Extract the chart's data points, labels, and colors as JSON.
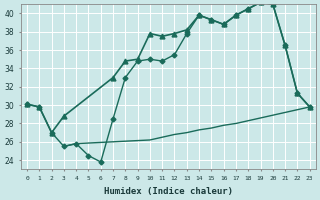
{
  "xlabel": "Humidex (Indice chaleur)",
  "bg_color": "#cce8e8",
  "grid_color": "#ffffff",
  "line_color": "#1a6b5a",
  "xlim": [
    -0.5,
    23.5
  ],
  "ylim": [
    23,
    41
  ],
  "yticks": [
    24,
    26,
    28,
    30,
    32,
    34,
    36,
    38,
    40
  ],
  "xticks": [
    0,
    1,
    2,
    3,
    4,
    5,
    6,
    7,
    8,
    9,
    10,
    11,
    12,
    13,
    14,
    15,
    16,
    17,
    18,
    19,
    20,
    21,
    22,
    23
  ],
  "series": [
    {
      "x": [
        0,
        1,
        2,
        3,
        7,
        8,
        9,
        10,
        11,
        12,
        13,
        14,
        15,
        16,
        17,
        18,
        19,
        20,
        21,
        22,
        23
      ],
      "y": [
        30.1,
        29.8,
        27.0,
        28.8,
        33.0,
        34.8,
        35.0,
        37.8,
        37.5,
        37.8,
        38.2,
        39.8,
        39.3,
        38.8,
        39.8,
        40.5,
        41.2,
        41.0,
        36.5,
        31.3,
        29.8
      ],
      "marker": "^",
      "markersize": 3.5,
      "linewidth": 1.2
    },
    {
      "x": [
        0,
        1,
        2,
        3,
        4,
        5,
        6,
        7,
        8,
        9,
        10,
        11,
        12,
        13,
        14,
        15,
        16,
        17,
        18,
        19,
        20,
        21,
        22,
        23
      ],
      "y": [
        30.1,
        29.8,
        27.0,
        25.5,
        25.8,
        24.5,
        23.8,
        28.5,
        33.0,
        34.8,
        35.0,
        34.8,
        35.5,
        37.8,
        39.8,
        39.3,
        38.8,
        39.8,
        40.5,
        41.2,
        41.0,
        36.5,
        31.3,
        29.8
      ],
      "marker": "D",
      "markersize": 2.5,
      "linewidth": 1.0
    },
    {
      "x": [
        3,
        4,
        10,
        11,
        12,
        13,
        14,
        15,
        16,
        17,
        18,
        19,
        20,
        21,
        22,
        23
      ],
      "y": [
        25.5,
        25.8,
        26.2,
        26.5,
        26.8,
        27.0,
        27.3,
        27.5,
        27.8,
        28.0,
        28.3,
        28.6,
        28.9,
        29.2,
        29.5,
        29.8
      ],
      "marker": null,
      "markersize": 0,
      "linewidth": 1.0
    }
  ]
}
